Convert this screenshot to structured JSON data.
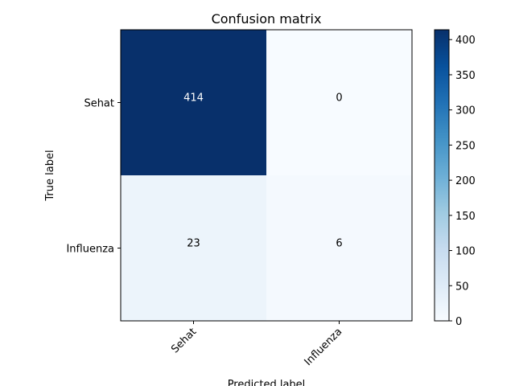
{
  "chart_data": {
    "type": "heatmap",
    "title": "Confusion matrix",
    "xlabel": "Predicted label",
    "ylabel": "True label",
    "x_categories": [
      "Sehat",
      "Influenza"
    ],
    "y_categories": [
      "Sehat",
      "Influenza"
    ],
    "matrix": [
      [
        414,
        0
      ],
      [
        23,
        6
      ]
    ],
    "colormap": "Blues",
    "colormap_stops": [
      "#f7fbff",
      "#deebf7",
      "#c6dbef",
      "#9ecae1",
      "#6baed6",
      "#4292c6",
      "#2171b5",
      "#08519c",
      "#08306b"
    ],
    "value_range": [
      0,
      414
    ],
    "colorbar_ticks": [
      0,
      50,
      100,
      150,
      200,
      250,
      300,
      350,
      400
    ],
    "text_color_light": "#ffffff",
    "text_color_dark": "#000000",
    "grid": false
  }
}
